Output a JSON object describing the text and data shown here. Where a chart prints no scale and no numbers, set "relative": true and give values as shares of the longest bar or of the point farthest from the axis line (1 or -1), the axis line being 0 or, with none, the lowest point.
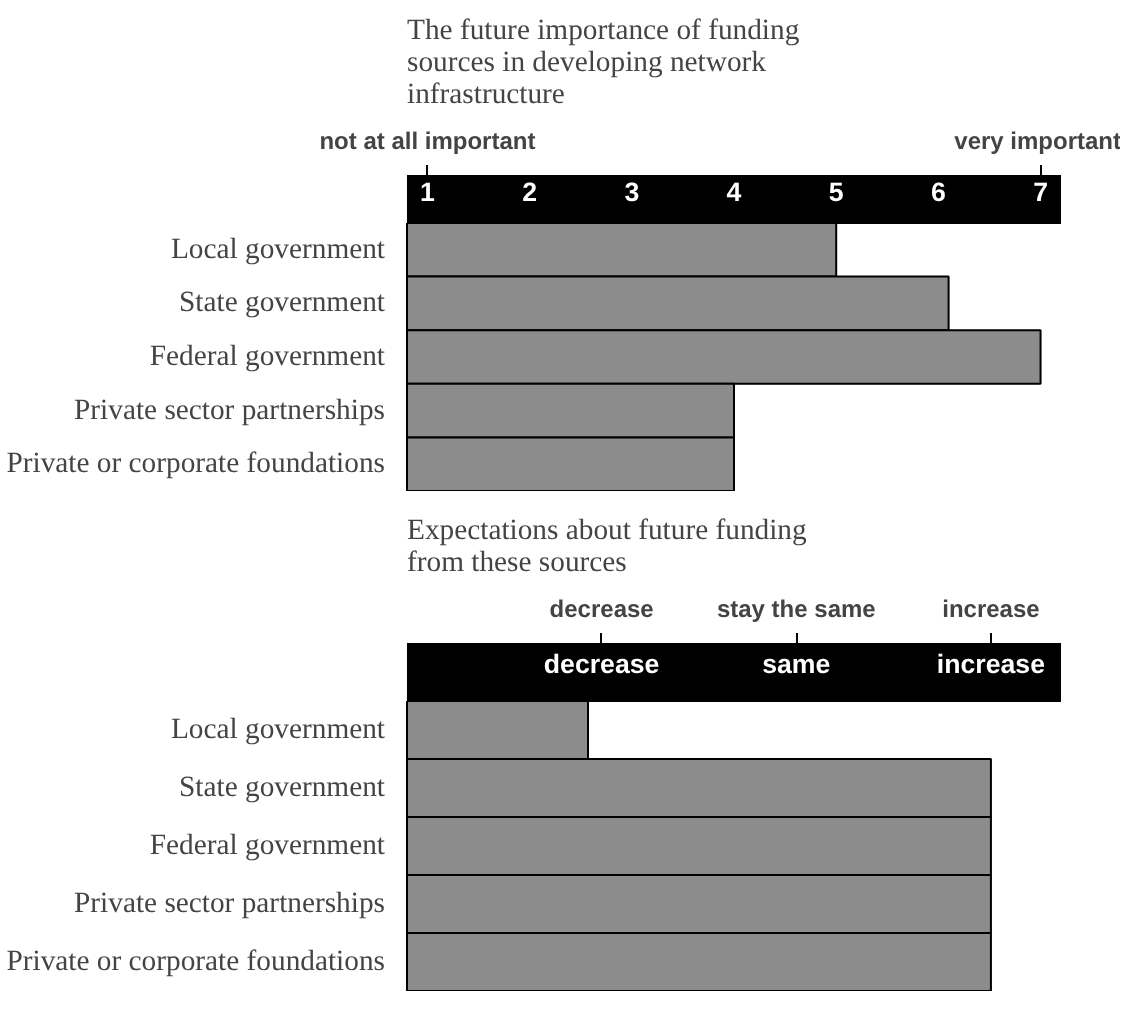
{
  "chart_data": [
    {
      "type": "bar",
      "orientation": "horizontal",
      "title": "The future importance of funding sources in developing network infrastructure",
      "categories": [
        "Local government",
        "State government",
        "Federal government",
        "Private sector partnerships",
        "Private or corporate foundations"
      ],
      "values": [
        5,
        6.1,
        7,
        4,
        4
      ],
      "color": "#8c8c8c",
      "xlim": [
        0.8,
        7.2
      ],
      "xticks": [
        1,
        2,
        3,
        4,
        5,
        6,
        7
      ],
      "annotations": [
        "not at all important",
        "very important"
      ],
      "grid": false
    },
    {
      "type": "bar",
      "orientation": "horizontal",
      "title": "Expectations about future funding from these sources",
      "relative": true,
      "categories": [
        "Local government",
        "State government",
        "Federal government",
        "Private sector partnerships",
        "Private or corporate foundations"
      ],
      "values": [
        0.31,
        1,
        1,
        1,
        1
      ],
      "color": "#8c8c8c",
      "annotations": [
        "decrease",
        "same",
        "increase",
        "decrease",
        "stay the same",
        "increase"
      ],
      "grid": false
    }
  ]
}
